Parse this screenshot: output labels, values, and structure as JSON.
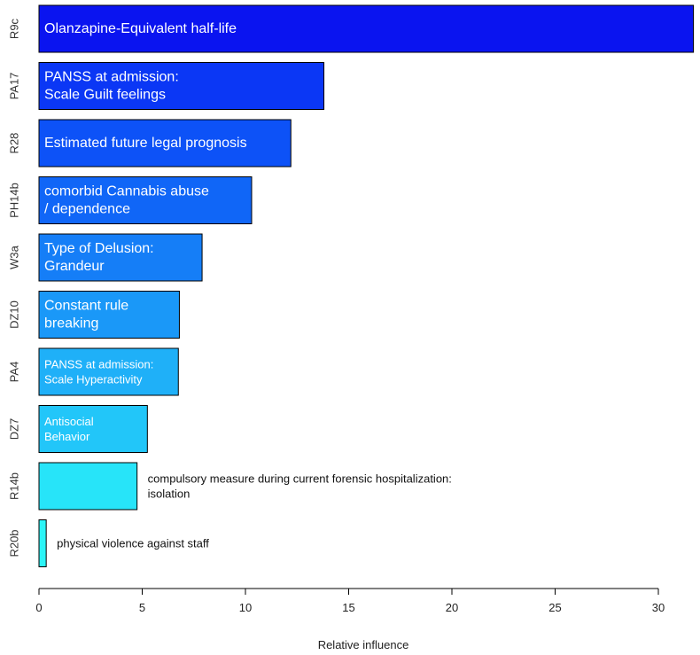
{
  "chart_data": {
    "type": "bar",
    "orientation": "horizontal",
    "xlabel": "Relative influence",
    "xlim": [
      0,
      32
    ],
    "xticks": [
      0,
      5,
      10,
      15,
      20,
      25,
      30
    ],
    "grid": false,
    "legend": "none",
    "bars": [
      {
        "code": "R9c",
        "value": 31.7,
        "label": [
          "Olanzapine-Equivalent half-life"
        ],
        "color": "#0a14f0",
        "text_color": "#ffffff",
        "label_inside": true
      },
      {
        "code": "PA17",
        "value": 13.8,
        "label": [
          "PANSS at admission:",
          "Scale Guilt feelings"
        ],
        "color": "#0b37f5",
        "text_color": "#ffffff",
        "label_inside": true
      },
      {
        "code": "R28",
        "value": 12.2,
        "label": [
          "Estimated future legal prognosis"
        ],
        "color": "#0d52f7",
        "text_color": "#ffffff",
        "label_inside": true
      },
      {
        "code": "PH14b",
        "value": 10.3,
        "label": [
          "comorbid Cannabis abuse",
          "/ dependence"
        ],
        "color": "#1066f7",
        "text_color": "#ffffff",
        "label_inside": true
      },
      {
        "code": "W3a",
        "value": 7.9,
        "label": [
          "Type of Delusion:",
          "Grandeur"
        ],
        "color": "#157ef7",
        "text_color": "#ffffff",
        "label_inside": true
      },
      {
        "code": "DZ10",
        "value": 6.8,
        "label": [
          "Constant rule",
          "breaking"
        ],
        "color": "#1a98f8",
        "text_color": "#ffffff",
        "label_inside": true
      },
      {
        "code": "PA4",
        "value": 6.75,
        "label": [
          "PANSS at admission:",
          "Scale Hyperactivity"
        ],
        "color": "#1fb0f8",
        "text_color": "#ffffff",
        "label_inside": true
      },
      {
        "code": "DZ7",
        "value": 5.25,
        "label": [
          "Antisocial",
          "Behavior"
        ],
        "color": "#22c6f9",
        "text_color": "#ffffff",
        "label_inside": true
      },
      {
        "code": "R14b",
        "value": 4.75,
        "label": [
          "compulsory measure during current forensic hospitalization:",
          "isolation"
        ],
        "color": "#27e4f9",
        "text_color": "#111111",
        "label_inside": false
      },
      {
        "code": "R20b",
        "value": 0.35,
        "label": [
          "physical violence against staff"
        ],
        "color": "#2cf4f6",
        "text_color": "#111111",
        "label_inside": false
      }
    ]
  }
}
